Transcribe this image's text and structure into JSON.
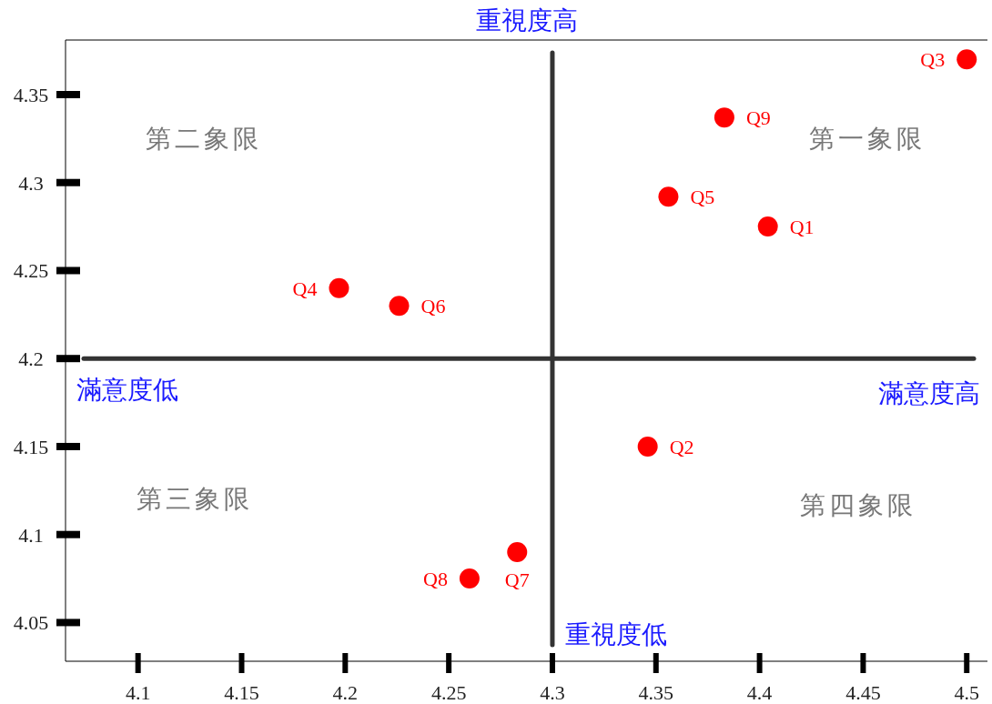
{
  "chart_data": {
    "type": "scatter",
    "title": "重視度高",
    "xlabel": "滿意度高",
    "xlim": [
      4.065,
      4.51
    ],
    "ylim": [
      4.028,
      4.381
    ],
    "xticks": [
      4.1,
      4.15,
      4.2,
      4.25,
      4.3,
      4.35,
      4.4,
      4.45,
      4.5
    ],
    "yticks": [
      4.05,
      4.1,
      4.15,
      4.2,
      4.25,
      4.3,
      4.35
    ],
    "grid": false,
    "legend": false,
    "marker": "circle",
    "series": [
      {
        "name": "Q1",
        "color": "#ff0000",
        "x": [
          4.404
        ],
        "values": [
          4.275
        ]
      },
      {
        "name": "Q2",
        "color": "#ff0000",
        "x": [
          4.346
        ],
        "values": [
          4.15
        ]
      },
      {
        "name": "Q3",
        "color": "#ff0000",
        "x": [
          4.5
        ],
        "values": [
          4.37
        ]
      },
      {
        "name": "Q4",
        "color": "#ff0000",
        "x": [
          4.197
        ],
        "values": [
          4.24
        ]
      },
      {
        "name": "Q5",
        "color": "#ff0000",
        "x": [
          4.356
        ],
        "values": [
          4.292
        ]
      },
      {
        "name": "Q6",
        "color": "#ff0000",
        "x": [
          4.226
        ],
        "values": [
          4.23
        ]
      },
      {
        "name": "Q7",
        "color": "#ff0000",
        "x": [
          4.283
        ],
        "values": [
          4.09
        ]
      },
      {
        "name": "Q8",
        "color": "#ff0000",
        "x": [
          4.26
        ],
        "values": [
          4.075
        ]
      },
      {
        "name": "Q9",
        "color": "#ff0000",
        "x": [
          4.383
        ],
        "values": [
          4.337
        ]
      }
    ],
    "ref_lines": [
      {
        "axis": "x",
        "value": 4.3,
        "label": "重視度低",
        "color": "#333333"
      },
      {
        "axis": "y",
        "value": 4.2,
        "label": "滿意度低",
        "color": "#333333"
      }
    ],
    "annotations": [
      "第二象限",
      "第一象限",
      "第三象限",
      "第四象限"
    ]
  }
}
